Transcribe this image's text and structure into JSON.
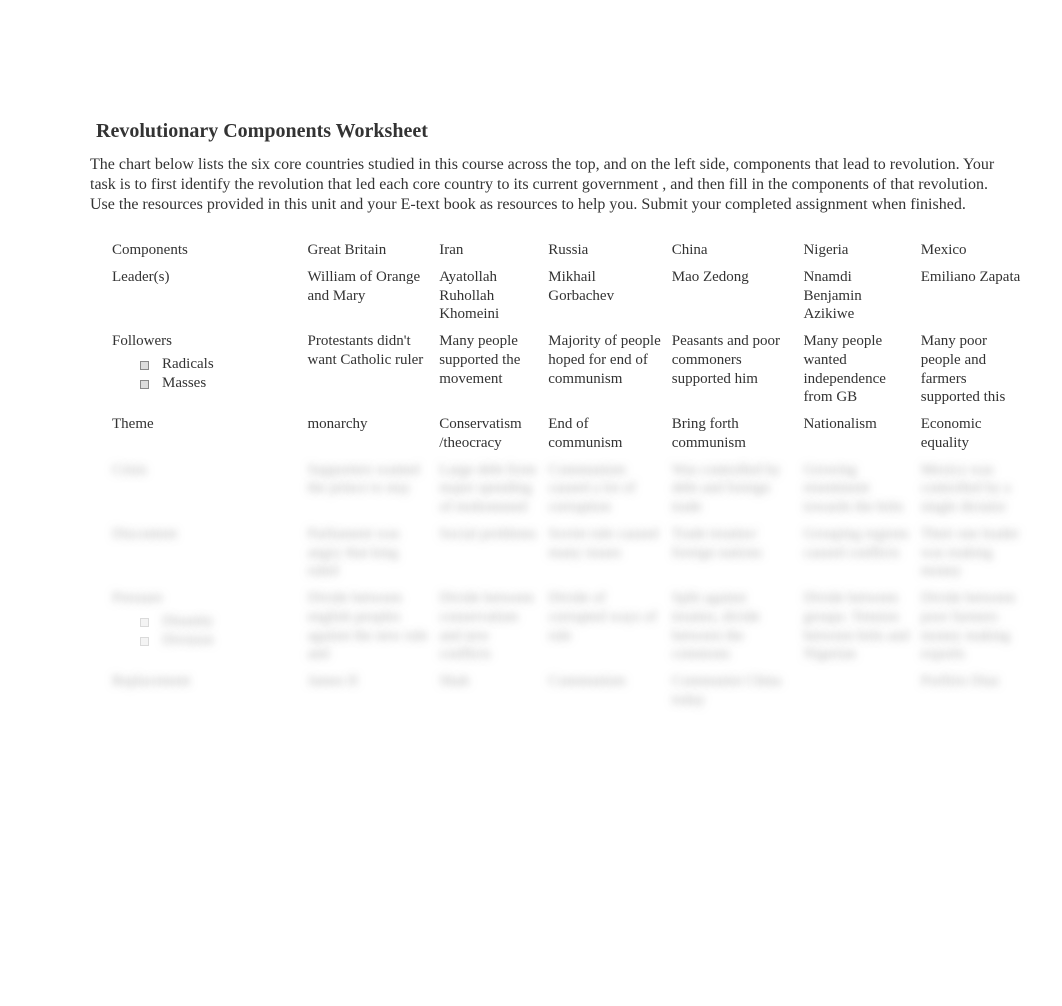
{
  "title": "Revolutionary Components Worksheet",
  "instructions": "The chart below lists the six core countries studied in this course across the top, and on the left side, components that lead to revolution. Your task is to first  identify the revolution that led each core country to its current government        , and then fill in the components of that revolution. Use the resources provided in this unit and your E-text book as resources to help you. Submit your completed assignment when finished.",
  "columns": [
    "Components",
    "Great Britain",
    "Iran",
    "Russia",
    "China",
    "Nigeria",
    "Mexico"
  ],
  "rows": {
    "leaders": {
      "label": "Leader(s)",
      "gb": "William of Orange and Mary",
      "iran": " Ayatollah Ruhollah Khomeini",
      "russia": " Mikhail Gorbachev",
      "china": " Mao Zedong",
      "nigeria": " Nnamdi Benjamin Azikiwe",
      "mexico": " Emiliano Zapata"
    },
    "followers": {
      "label": "Followers",
      "bullets": [
        "Radicals",
        "Masses"
      ],
      "gb": " Protestants didn't want Catholic ruler",
      "iran": "  Many people supported the movement",
      "russia": " Majority of people hoped for end of communism",
      "china": "  Peasants and poor commoners supported him",
      "nigeria": "Many people wanted independence from GB",
      "mexico": "  Many poor people and farmers supported this"
    },
    "theme": {
      "label": "Theme",
      "gb": " monarchy",
      "iran": "Conservatism /theocracy",
      "russia": " End of communism",
      "china": " Bring forth communism",
      "nigeria": " Nationalism",
      "mexico": " Economic equality"
    },
    "crisis": {
      "label": "Crisis",
      "gb": "Supporters wanted the prince to stay",
      "iran": "Large debt from major spending of mohommed",
      "russia": "Communism caused a lot of corruption",
      "china": "Was controlled by debt and foreign trade",
      "nigeria": "Growing resentment towards the brits",
      "mexico": "Mexico was controlled by a single dictator"
    },
    "discontent": {
      "label": "Discontent",
      "gb": "Parliament was angry that king ruled",
      "iran": " Social problems",
      "russia": " Soviet rule caused many issues",
      "china": "Trade treaties/ foreign nations",
      "nigeria": " Grouping regions caused conflicts",
      "mexico": "Their one leader was making money"
    },
    "pressure": {
      "label": "Pressure",
      "bullets": [
        "Disunity",
        "Division"
      ],
      "gb": "Divide between english peoples against the new rule and",
      "iran": "Divide between conservatism and new conflicts",
      "russia": " Divide of corrupted ways of rule",
      "china": " Split against treaties, divide between the commons",
      "nigeria": "Divide between groups. Tension between brits and Nigerian",
      "mexico": " Divide between poor farmers money making exports"
    },
    "replacement": {
      "label": "Replacement",
      "gb": " James II",
      "iran": " Shah",
      "russia": " Communism",
      "china": " Communist China today",
      "nigeria": "",
      "mexico": " Porfirio Diaz"
    }
  }
}
